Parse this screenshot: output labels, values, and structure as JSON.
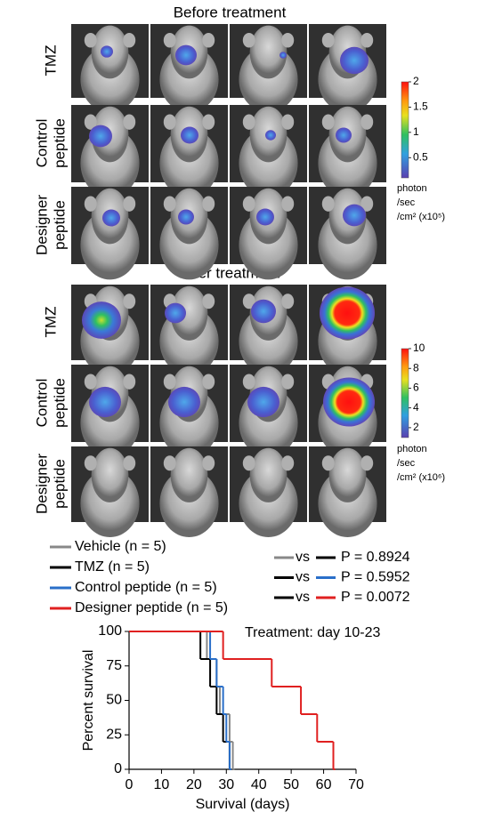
{
  "before_title": "Before treatment",
  "after_title": "After treatment",
  "row_labels": [
    [
      "TMZ"
    ],
    [
      "Control",
      "peptide"
    ],
    [
      "Designer",
      "peptide"
    ]
  ],
  "after_row_labels": [
    [
      "TMZ"
    ],
    [
      "Control",
      "peptide"
    ],
    [
      "Designer",
      "peptide"
    ]
  ],
  "colorbars": [
    {
      "lim": [
        0.1,
        2
      ],
      "ticks": [
        0.5,
        1,
        1.5,
        2
      ],
      "unit_lines": [
        "photon",
        "/sec",
        "/cm² (x10⁵)"
      ]
    },
    {
      "lim": [
        1,
        10
      ],
      "ticks": [
        2,
        4,
        6,
        8,
        10
      ],
      "unit_lines": [
        "photon",
        "/sec",
        "/cm² (x10⁶)"
      ]
    }
  ],
  "comparisons": [
    {
      "vs": "vs",
      "p": "P = 0.8924",
      "colors": [
        "#888888",
        "#000000"
      ]
    },
    {
      "vs": "vs",
      "p": "P = 0.5952",
      "colors": [
        "#000000",
        "#2a6fc9"
      ]
    },
    {
      "vs": "vs",
      "p": "P = 0.0072",
      "colors": [
        "#000000",
        "#e02020"
      ]
    }
  ],
  "chart_data": {
    "type": "step",
    "annotation": "Treatment: day 10-23",
    "x_label": "Survival (days)",
    "y_label": "Percent survival",
    "xlim": [
      0,
      70
    ],
    "xticks": [
      0,
      10,
      20,
      30,
      40,
      50,
      60,
      70
    ],
    "ylim": [
      0,
      100
    ],
    "yticks": [
      0,
      25,
      50,
      75,
      100
    ],
    "series": [
      {
        "name": "Vehicle (n = 5)",
        "color": "#888888",
        "x": [
          0,
          24,
          27,
          28,
          31,
          32
        ],
        "values": [
          100,
          80,
          60,
          40,
          20,
          0
        ]
      },
      {
        "name": "TMZ (n = 5)",
        "color": "#000000",
        "x": [
          0,
          22,
          25,
          27,
          29,
          31
        ],
        "values": [
          100,
          80,
          60,
          40,
          20,
          0
        ]
      },
      {
        "name": "Control peptide (n = 5)",
        "color": "#2a6fc9",
        "x": [
          0,
          25,
          27,
          29,
          30,
          31
        ],
        "values": [
          100,
          80,
          60,
          40,
          20,
          0
        ]
      },
      {
        "name": "Designer peptide (n = 5)",
        "color": "#e02020",
        "x": [
          0,
          29,
          44,
          53,
          58,
          63
        ],
        "values": [
          100,
          80,
          60,
          40,
          20,
          0
        ]
      }
    ]
  }
}
